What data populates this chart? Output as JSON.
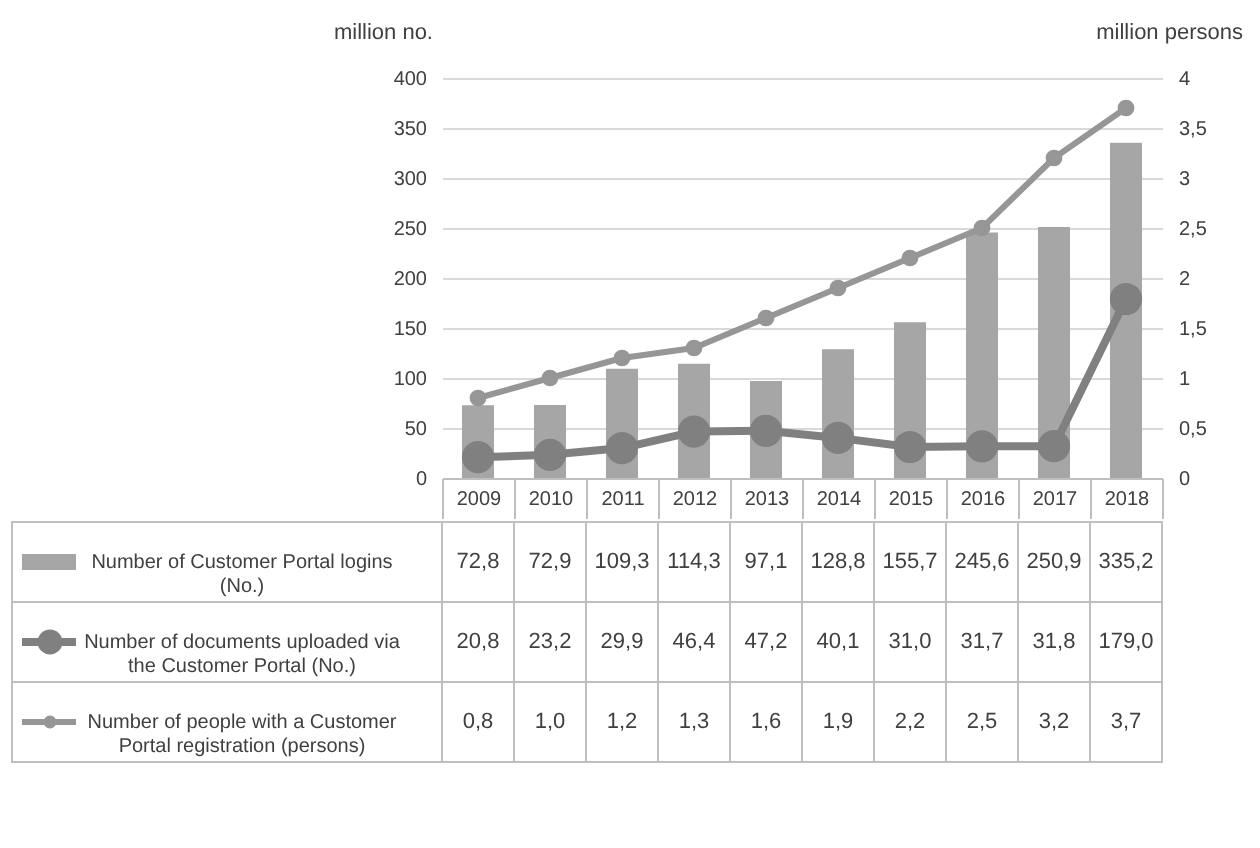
{
  "chart_data": {
    "type": "bar",
    "ylabel": "million no.",
    "y2label": "million persons",
    "categories": [
      "2009",
      "2010",
      "2011",
      "2012",
      "2013",
      "2014",
      "2015",
      "2016",
      "2017",
      "2018"
    ],
    "series": [
      {
        "name": "Number of Customer Portal logins (No.)",
        "color": "#a6a6a6",
        "values": [
          72.8,
          72.9,
          109.3,
          114.3,
          97.1,
          128.8,
          155.7,
          245.6,
          250.9,
          335.2
        ],
        "value_labels": [
          "72,8",
          "72,9",
          "109,3",
          "114,3",
          "97,1",
          "128,8",
          "155,7",
          "245,6",
          "250,9",
          "335,2"
        ]
      },
      {
        "name": "Number of documents uploaded via the Customer Portal (No.)",
        "type": "line",
        "color": "#808080",
        "values": [
          20.8,
          23.2,
          29.9,
          46.4,
          47.2,
          40.1,
          31.0,
          31.7,
          31.8,
          179.0
        ],
        "value_labels": [
          "20,8",
          "23,2",
          "29,9",
          "46,4",
          "47,2",
          "40,1",
          "31,0",
          "31,7",
          "31,8",
          "179,0"
        ]
      },
      {
        "name": "Number of people with a Customer Portal registration (persons)",
        "type": "line",
        "axis": "y2",
        "color": "#969696",
        "values": [
          0.8,
          1.0,
          1.2,
          1.3,
          1.6,
          1.9,
          2.2,
          2.5,
          3.2,
          3.7
        ],
        "value_labels": [
          "0,8",
          "1,0",
          "1,2",
          "1,3",
          "1,6",
          "1,9",
          "2,2",
          "2,5",
          "3,2",
          "3,7"
        ]
      }
    ],
    "ylim": [
      0,
      400
    ],
    "yticks": [
      0,
      50,
      100,
      150,
      200,
      250,
      300,
      350,
      400
    ],
    "y2lim": [
      0,
      4
    ],
    "y2ticks": [
      0,
      {
        "value": 0.5,
        "label": "0,5"
      },
      1,
      {
        "value": 1.5,
        "label": "1,5"
      },
      2,
      {
        "value": 2.5,
        "label": "2,5"
      },
      3,
      {
        "value": 3.5,
        "label": "3,5"
      },
      4
    ],
    "grid": "y",
    "legend": "bottom",
    "marker": "circle",
    "line_style": "solid"
  }
}
